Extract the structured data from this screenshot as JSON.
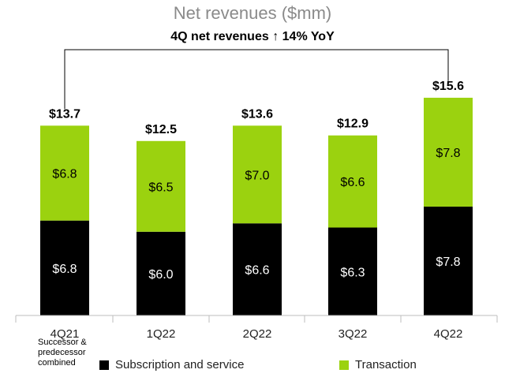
{
  "chart_data": {
    "type": "bar",
    "stacked": true,
    "title": "Net revenues ($mm)",
    "subtitle": "4Q net revenues ↑ 14% YoY",
    "categories": [
      "4Q21",
      "1Q22",
      "2Q22",
      "3Q22",
      "4Q22"
    ],
    "series": [
      {
        "name": "Subscription and service",
        "color": "#000000",
        "label_color": "#ffffff",
        "values": [
          6.8,
          6.0,
          6.6,
          6.3,
          7.8
        ],
        "labels": [
          "$6.8",
          "$6.0",
          "$6.6",
          "$6.3",
          "$7.8"
        ]
      },
      {
        "name": "Transaction",
        "color": "#9bd20f",
        "label_color": "#000000",
        "values": [
          6.8,
          6.5,
          7.0,
          6.6,
          7.8
        ],
        "labels": [
          "$6.8",
          "$6.5",
          "$7.0",
          "$6.6",
          "$7.8"
        ]
      }
    ],
    "totals": [
      "$13.7",
      "$12.5",
      "$13.6",
      "$12.9",
      "$15.6"
    ],
    "ylim": [
      0,
      16.5
    ],
    "xlabel": "",
    "ylabel": "",
    "grid": false,
    "legend_position": "bottom"
  },
  "footnote": [
    "Successor &",
    "predecessor",
    "combined"
  ]
}
